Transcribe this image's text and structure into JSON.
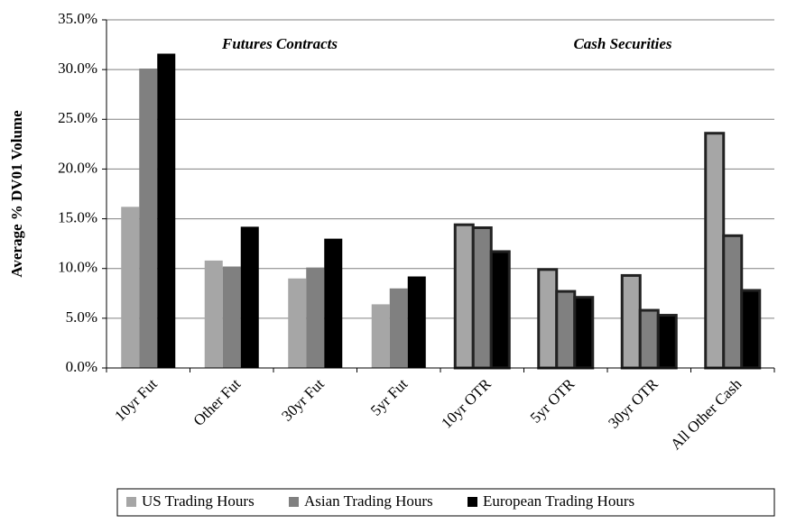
{
  "chart_data": {
    "type": "bar",
    "y_label": "Average % DV01 Volume",
    "annotations": [
      "Futures Contracts",
      "Cash Securities"
    ],
    "categories": [
      "10yr Fut",
      "Other Fut",
      "30yr Fut",
      "5yr Fut",
      "10yr OTR",
      "5yr OTR",
      "30yr OTR",
      "All Other Cash"
    ],
    "series": [
      {
        "name": "US Trading Hours",
        "color": "#a6a6a6",
        "values": [
          16.2,
          10.8,
          9.0,
          6.4,
          14.4,
          9.9,
          9.3,
          23.6
        ]
      },
      {
        "name": "Asian Trading Hours",
        "color": "#808080",
        "values": [
          30.1,
          10.2,
          10.1,
          8.0,
          14.1,
          7.7,
          5.8,
          13.3
        ]
      },
      {
        "name": "European Trading Hours",
        "color": "#000000",
        "values": [
          31.6,
          14.2,
          13.0,
          9.2,
          11.7,
          7.1,
          5.3,
          7.8
        ]
      }
    ],
    "bar_edge": [
      "none",
      "none",
      "none",
      "none",
      "#222222",
      "#222222",
      "#222222",
      "#222222"
    ],
    "ylim": [
      0,
      35
    ],
    "yticks": [
      {
        "value": 0,
        "label": "0.0%"
      },
      {
        "value": 5,
        "label": "5.0%"
      },
      {
        "value": 10,
        "label": "10.0%"
      },
      {
        "value": 15,
        "label": "15.0%"
      },
      {
        "value": 20,
        "label": "20.0%"
      },
      {
        "value": 25,
        "label": "25.0%"
      },
      {
        "value": 30,
        "label": "30.0%"
      },
      {
        "value": 35,
        "label": "35.0%"
      }
    ],
    "grid": true,
    "legend": "bottom"
  }
}
